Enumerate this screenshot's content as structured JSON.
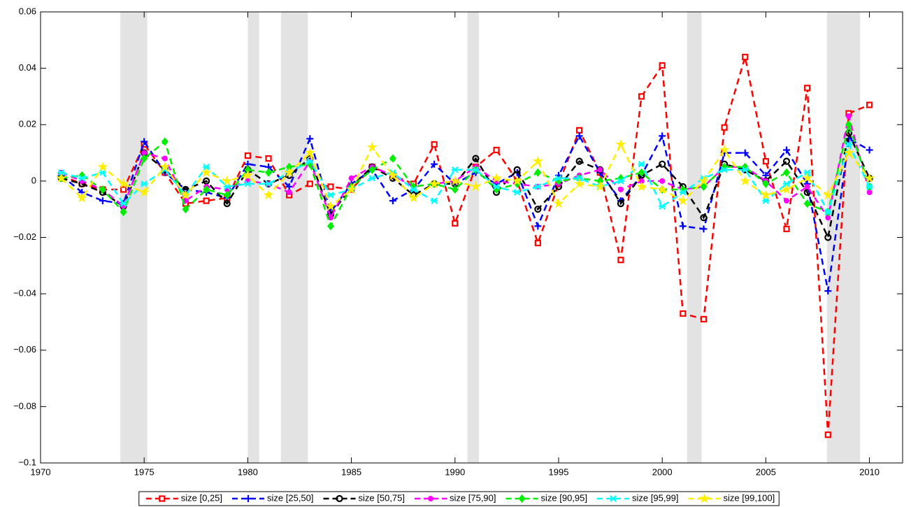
{
  "chart_data": {
    "type": "line",
    "x": [
      1971,
      1972,
      1973,
      1974,
      1975,
      1976,
      1977,
      1978,
      1979,
      1980,
      1981,
      1982,
      1983,
      1984,
      1985,
      1986,
      1987,
      1988,
      1989,
      1990,
      1991,
      1992,
      1993,
      1994,
      1995,
      1996,
      1997,
      1998,
      1999,
      2000,
      2001,
      2002,
      2003,
      2004,
      2005,
      2006,
      2007,
      2008,
      2009,
      2010
    ],
    "xlim": [
      1970,
      2011.6
    ],
    "xticks": [
      1970,
      1975,
      1980,
      1985,
      1990,
      1995,
      2000,
      2005,
      2010
    ],
    "ylim": [
      -0.1,
      0.06
    ],
    "yticks": [
      {
        "value": -0.1,
        "label": "−0.1"
      },
      {
        "value": -0.08,
        "label": "−0.08"
      },
      {
        "value": -0.06,
        "label": "−0.06"
      },
      {
        "value": -0.04,
        "label": "−0.04"
      },
      {
        "value": -0.02,
        "label": "−0.02"
      },
      0,
      0.02,
      0.04,
      0.06
    ],
    "grid": false,
    "line_style": "dashed",
    "legend": "bottom",
    "shaded_periods": [
      [
        1973.85,
        1975.15
      ],
      [
        1980.0,
        1980.55
      ],
      [
        1981.6,
        1982.9
      ],
      [
        1990.6,
        1991.15
      ],
      [
        2001.2,
        2001.9
      ],
      [
        2007.95,
        2009.55
      ]
    ],
    "shade_color": "#e3e3e3",
    "series": [
      {
        "name": "size [0,25]",
        "color": "#ff0000",
        "marker": "square",
        "values": [
          0.002,
          -0.001,
          -0.003,
          -0.003,
          0.013,
          0.003,
          -0.008,
          -0.007,
          -0.006,
          0.009,
          0.008,
          -0.005,
          -0.001,
          -0.002,
          -0.003,
          0.005,
          0.002,
          -0.001,
          0.013,
          -0.015,
          0.005,
          0.011,
          0.0,
          -0.022,
          -0.001,
          0.018,
          0.003,
          -0.028,
          0.03,
          0.041,
          -0.047,
          -0.049,
          0.019,
          0.044,
          0.007,
          -0.017,
          0.033,
          -0.09,
          0.024,
          0.027
        ]
      },
      {
        "name": "size [25,50]",
        "color": "#0000ff",
        "marker": "plus",
        "values": [
          0.002,
          -0.004,
          -0.007,
          -0.008,
          0.014,
          0.003,
          -0.003,
          -0.004,
          -0.006,
          0.006,
          0.005,
          -0.002,
          0.015,
          -0.011,
          -0.001,
          0.004,
          -0.007,
          -0.003,
          0.006,
          -0.001,
          0.003,
          -0.001,
          0.003,
          -0.016,
          0.002,
          0.016,
          0.003,
          -0.007,
          0.002,
          0.016,
          -0.016,
          -0.017,
          0.01,
          0.01,
          0.002,
          0.011,
          -0.001,
          -0.039,
          0.015,
          0.011
        ]
      },
      {
        "name": "size [50,75]",
        "color": "#000000",
        "marker": "circle",
        "values": [
          0.001,
          -0.001,
          -0.004,
          -0.009,
          0.01,
          0.004,
          -0.003,
          0.0,
          -0.008,
          0.004,
          -0.001,
          0.002,
          0.008,
          -0.012,
          -0.002,
          0.005,
          0.001,
          -0.005,
          -0.001,
          -0.001,
          0.008,
          -0.004,
          0.004,
          -0.01,
          -0.002,
          0.007,
          0.004,
          -0.008,
          0.002,
          0.006,
          -0.002,
          -0.013,
          0.006,
          0.004,
          0.0,
          0.007,
          -0.004,
          -0.02,
          0.017,
          0.001
        ]
      },
      {
        "name": "size [75,90]",
        "color": "#ff00ff",
        "marker": "dot",
        "values": [
          0.003,
          0.0,
          -0.003,
          -0.009,
          0.01,
          0.008,
          -0.007,
          -0.002,
          -0.003,
          0.0,
          -0.001,
          -0.004,
          0.007,
          -0.013,
          0.001,
          0.005,
          0.002,
          -0.002,
          -0.001,
          0.0,
          0.005,
          0.0,
          -0.001,
          -0.002,
          -0.001,
          0.002,
          0.004,
          -0.003,
          0.0,
          0.0,
          -0.003,
          -0.002,
          0.005,
          0.005,
          0.0,
          -0.007,
          -0.002,
          -0.013,
          0.023,
          -0.004
        ]
      },
      {
        "name": "size [90,95]",
        "color": "#00ee00",
        "marker": "diamond",
        "values": [
          0.001,
          0.002,
          -0.003,
          -0.011,
          0.008,
          0.014,
          -0.01,
          -0.003,
          -0.005,
          0.004,
          0.003,
          0.005,
          0.006,
          -0.016,
          -0.002,
          0.004,
          0.008,
          -0.002,
          -0.001,
          -0.003,
          0.004,
          -0.003,
          -0.001,
          0.003,
          0.0,
          0.001,
          0.0,
          0.001,
          0.003,
          -0.003,
          -0.003,
          -0.002,
          0.005,
          0.005,
          -0.001,
          0.003,
          -0.008,
          -0.011,
          0.02,
          -0.002
        ]
      },
      {
        "name": "size [95,99]",
        "color": "#00ffff",
        "marker": "x",
        "values": [
          0.003,
          0.001,
          0.003,
          -0.008,
          -0.001,
          0.004,
          -0.005,
          0.005,
          -0.002,
          -0.001,
          -0.001,
          0.003,
          0.007,
          -0.005,
          -0.003,
          0.001,
          0.003,
          -0.003,
          -0.007,
          0.004,
          0.004,
          -0.002,
          -0.004,
          -0.002,
          0.001,
          0.001,
          -0.002,
          0.0,
          0.006,
          -0.009,
          -0.004,
          0.001,
          0.004,
          0.004,
          -0.007,
          -0.001,
          0.003,
          -0.011,
          0.013,
          -0.002
        ]
      },
      {
        "name": "size [99,100]",
        "color": "#ffee00",
        "marker": "star",
        "values": [
          0.001,
          -0.006,
          0.005,
          -0.001,
          -0.004,
          0.005,
          -0.005,
          0.003,
          0.0,
          0.002,
          -0.005,
          0.003,
          0.01,
          -0.009,
          -0.003,
          0.012,
          0.002,
          -0.006,
          -0.001,
          0.0,
          -0.002,
          0.001,
          0.0,
          0.007,
          -0.008,
          -0.001,
          -0.002,
          0.013,
          -0.002,
          -0.003,
          -0.007,
          0.0,
          0.011,
          0.0,
          -0.005,
          -0.003,
          0.001,
          -0.005,
          0.01,
          0.001
        ]
      }
    ]
  }
}
